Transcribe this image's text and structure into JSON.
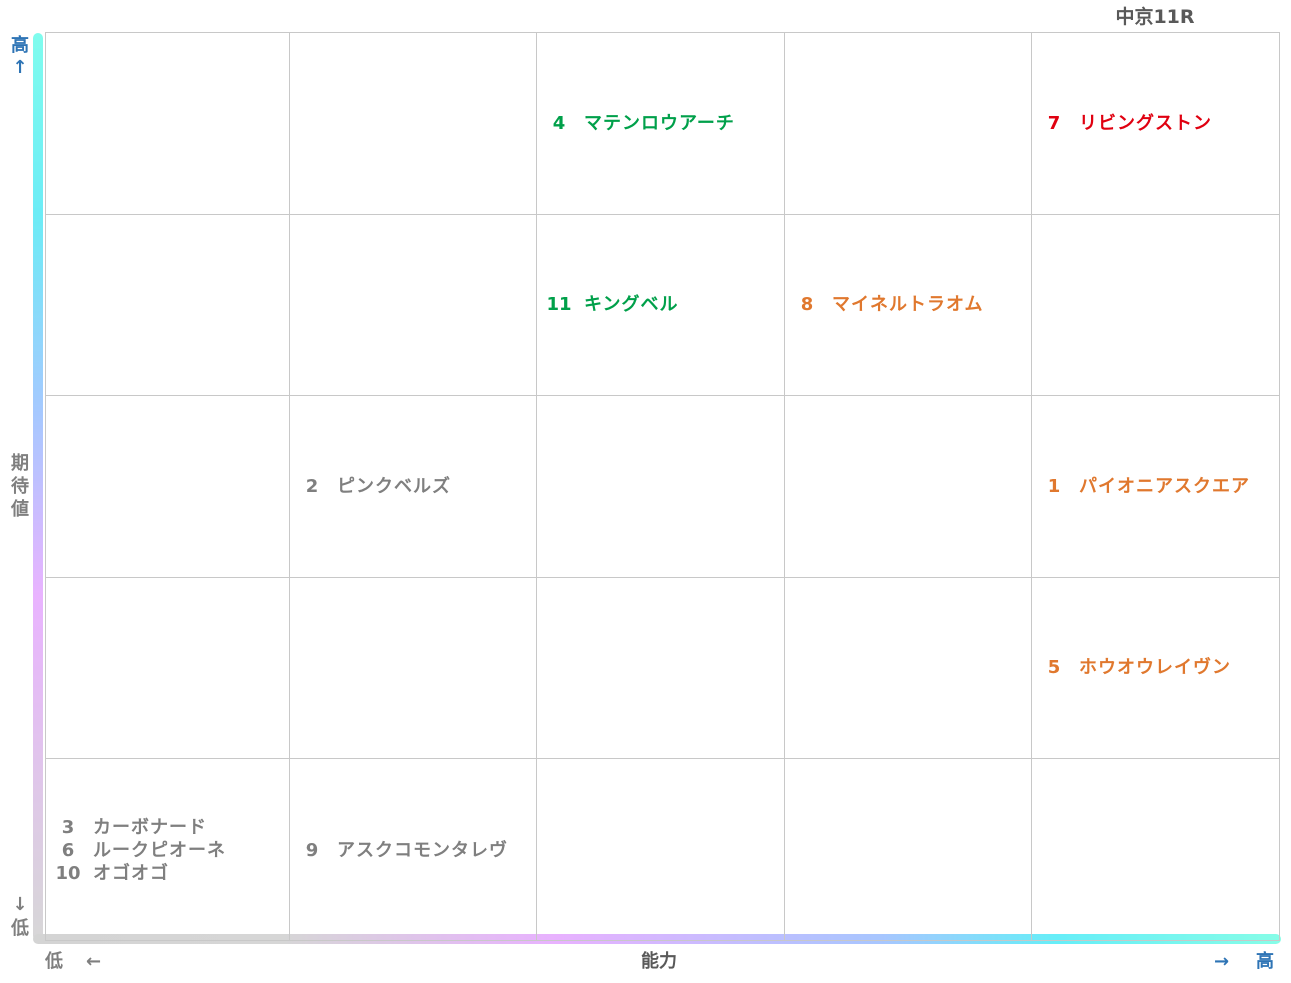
{
  "title": "中京11R",
  "axes": {
    "y_label": "期待値",
    "y_high": "高",
    "y_high_arrow": "↑",
    "y_low": "低",
    "y_low_arrow": "↓",
    "x_label": "能力",
    "x_low": "低",
    "x_low_arrow": "←",
    "x_high": "高",
    "x_high_arrow": "→"
  },
  "colors": {
    "gray": "#7f7f7f",
    "green": "#00a04a",
    "orange": "#e0782e",
    "red": "#e00010",
    "axis_label": "#7f7f7f",
    "axis_high": "#2e74b5"
  },
  "chart_data": {
    "type": "table",
    "columns": 5,
    "rows": 5,
    "cells": [
      {
        "col": 3,
        "row": 1,
        "color": "green",
        "horses": [
          {
            "num": "4",
            "name": "マテンロウアーチ"
          }
        ]
      },
      {
        "col": 5,
        "row": 1,
        "color": "red",
        "horses": [
          {
            "num": "7",
            "name": "リビングストン"
          }
        ]
      },
      {
        "col": 3,
        "row": 2,
        "color": "green",
        "horses": [
          {
            "num": "11",
            "name": "キングベル"
          }
        ]
      },
      {
        "col": 4,
        "row": 2,
        "color": "orange",
        "horses": [
          {
            "num": "8",
            "name": "マイネルトラオム"
          }
        ]
      },
      {
        "col": 2,
        "row": 3,
        "color": "gray",
        "horses": [
          {
            "num": "2",
            "name": "ピンクベルズ"
          }
        ]
      },
      {
        "col": 5,
        "row": 3,
        "color": "orange",
        "horses": [
          {
            "num": "1",
            "name": "パイオニアスクエア"
          }
        ]
      },
      {
        "col": 5,
        "row": 4,
        "color": "orange",
        "horses": [
          {
            "num": "5",
            "name": "ホウオウレイヴン"
          }
        ]
      },
      {
        "col": 1,
        "row": 5,
        "color": "gray",
        "horses": [
          {
            "num": "3",
            "name": "カーボナード"
          },
          {
            "num": "6",
            "name": "ルークピオーネ"
          },
          {
            "num": "10",
            "name": "オゴオゴ"
          }
        ]
      },
      {
        "col": 2,
        "row": 5,
        "color": "gray",
        "horses": [
          {
            "num": "9",
            "name": "アスクコモンタレヴ"
          }
        ]
      }
    ]
  }
}
